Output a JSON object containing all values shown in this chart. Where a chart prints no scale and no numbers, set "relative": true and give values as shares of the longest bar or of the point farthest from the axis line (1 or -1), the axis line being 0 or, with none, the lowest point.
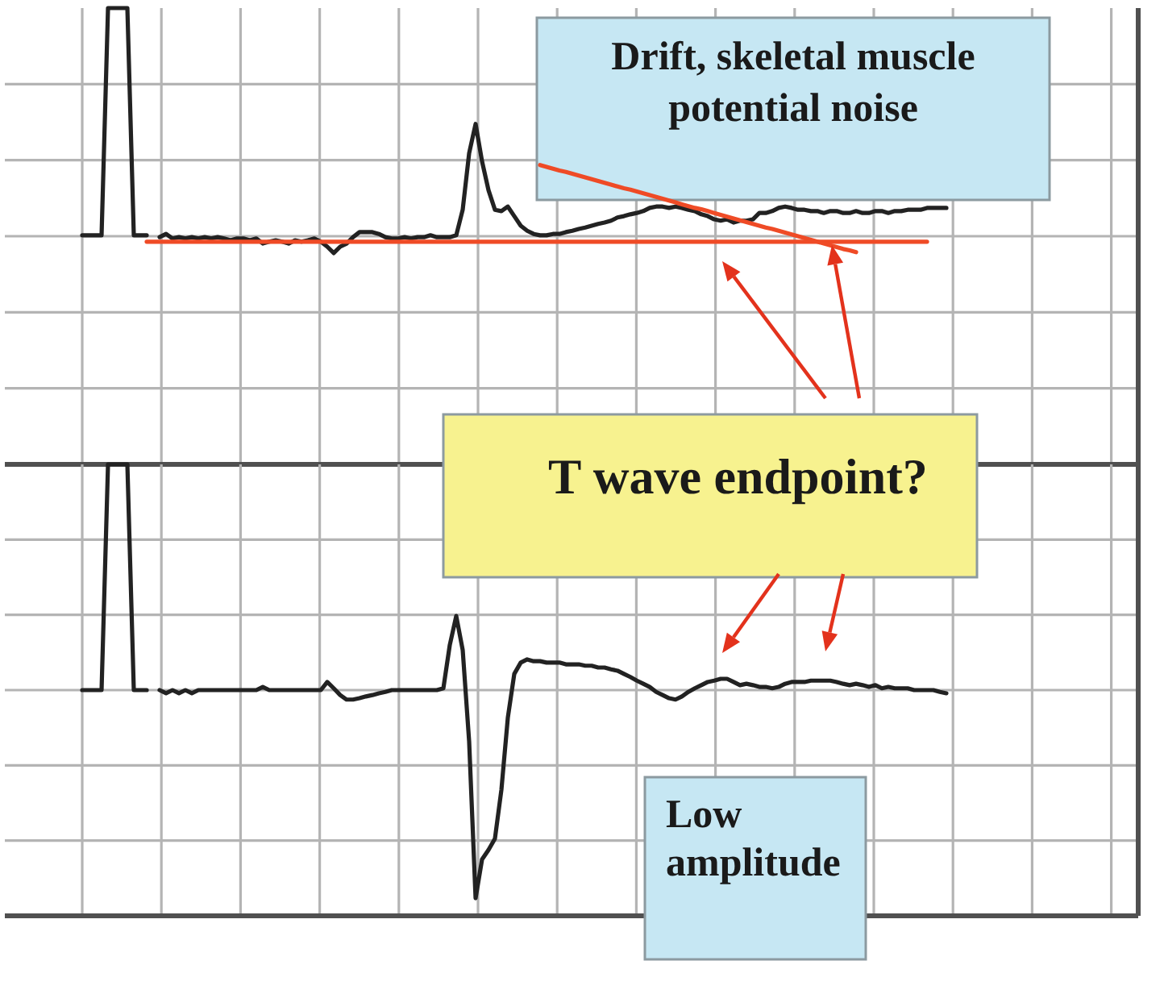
{
  "chart_data": [
    {
      "type": "line",
      "relative": true,
      "grid": true,
      "categories": [
        null,
        null,
        null,
        null,
        null,
        null,
        null,
        null,
        null,
        null,
        null,
        null,
        null,
        null,
        null,
        null,
        null,
        null,
        null,
        null,
        null,
        null,
        null,
        null,
        null,
        null,
        null,
        null,
        null,
        null,
        null,
        null,
        null,
        null,
        null,
        null,
        null,
        null,
        null,
        null,
        null,
        null,
        null,
        null,
        null,
        null,
        null,
        null,
        null,
        null,
        null,
        null,
        null,
        null,
        null,
        null,
        null,
        null,
        null,
        null,
        null,
        null,
        null,
        null,
        null,
        null,
        null,
        null,
        null,
        null,
        null,
        null,
        null,
        null,
        null,
        null,
        null,
        null,
        null,
        null,
        null,
        null,
        null,
        null,
        null,
        null,
        null,
        null,
        null,
        null,
        null,
        null,
        null,
        null,
        null,
        null,
        null,
        null,
        null,
        null,
        null,
        null,
        null,
        null,
        null,
        null,
        null,
        null,
        null,
        null,
        null,
        null,
        null,
        null,
        null,
        null,
        null,
        null,
        null,
        null,
        null,
        null,
        null,
        null,
        null,
        null,
        null,
        null,
        null,
        null,
        null,
        null,
        null,
        null,
        null
      ],
      "series": [
        {
          "color": "#222222",
          "values": [
            0.502,
            0.502,
            0.502,
            0.502,
            1,
            1,
            1,
            1,
            0.502,
            0.502,
            0.502,
            null,
            0.498,
            0.505,
            0.495,
            0.498,
            0.495,
            0.498,
            0.495,
            0.498,
            0.495,
            0.498,
            0.495,
            0.491,
            0.495,
            0.495,
            0.491,
            0.495,
            0.484,
            0.488,
            0.491,
            0.488,
            0.484,
            0.491,
            0.488,
            0.491,
            0.495,
            0.488,
            0.477,
            0.463,
            0.477,
            0.484,
            0.498,
            0.509,
            0.509,
            0.509,
            0.505,
            0.498,
            0.495,
            0.495,
            0.498,
            0.495,
            0.498,
            0.498,
            0.502,
            0.498,
            0.498,
            0.498,
            0.502,
            0.558,
            0.682,
            0.746,
            0.664,
            0.601,
            0.558,
            0.555,
            0.565,
            0.544,
            0.523,
            0.512,
            0.505,
            0.502,
            0.502,
            0.505,
            0.505,
            0.509,
            0.512,
            0.516,
            0.519,
            0.523,
            0.527,
            0.53,
            0.534,
            0.541,
            0.544,
            0.548,
            0.551,
            0.555,
            0.562,
            0.565,
            0.565,
            0.562,
            0.565,
            0.562,
            0.558,
            0.555,
            0.548,
            0.544,
            0.537,
            0.534,
            0.537,
            0.53,
            0.534,
            0.534,
            0.537,
            0.551,
            0.551,
            0.555,
            0.562,
            0.565,
            0.562,
            0.558,
            0.558,
            0.555,
            0.555,
            0.551,
            0.555,
            0.555,
            0.551,
            0.551,
            0.555,
            0.551,
            0.551,
            0.555,
            0.555,
            0.551,
            0.555,
            0.555,
            0.558,
            0.558,
            0.558,
            0.562,
            0.562,
            0.562,
            0.562
          ]
        },
        {
          "color": "#ef4b26",
          "values": [
            null,
            null,
            null,
            null,
            null,
            null,
            null,
            null,
            null,
            null,
            0.488,
            0.488,
            0.488,
            0.488,
            0.488,
            0.488,
            0.488,
            0.488,
            0.488,
            0.488,
            0.488,
            0.488,
            0.488,
            0.488,
            0.488,
            0.488,
            0.488,
            0.488,
            0.488,
            0.488,
            0.488,
            0.488,
            0.488,
            0.488,
            0.488,
            0.488,
            0.488,
            0.488,
            0.488,
            0.488,
            0.488,
            0.488,
            0.488,
            0.488,
            0.488,
            0.488,
            0.488,
            0.488,
            0.488,
            0.488,
            0.488,
            0.488,
            0.488,
            0.488,
            0.488,
            0.488,
            0.488,
            0.488,
            0.488,
            0.488,
            0.488,
            0.488,
            0.488,
            0.488,
            0.488,
            0.488,
            0.488,
            0.488,
            0.488,
            0.488,
            0.488,
            0.488,
            0.488,
            0.488,
            0.488,
            0.488,
            0.488,
            0.488,
            0.488,
            0.488,
            0.488,
            0.488,
            0.488,
            0.488,
            0.488,
            0.488,
            0.488,
            0.488,
            0.488,
            0.488,
            0.488,
            0.488,
            0.488,
            0.488,
            0.488,
            0.488,
            0.488,
            0.488,
            0.488,
            0.488,
            0.488,
            0.488,
            0.488,
            0.488,
            0.488,
            0.488,
            0.488,
            0.488,
            0.488,
            0.488,
            0.488,
            0.488,
            0.488,
            0.488,
            0.488,
            0.488,
            0.488,
            0.488,
            0.488,
            0.488,
            0.488,
            0.488,
            0.488,
            0.488,
            0.488,
            0.488,
            0.488,
            0.488,
            0.488,
            0.488,
            0.488,
            0.488,
            null,
            null,
            null
          ]
        },
        {
          "color": "#ef4b26",
          "values": [
            null,
            null,
            null,
            null,
            null,
            null,
            null,
            null,
            null,
            null,
            null,
            null,
            null,
            null,
            null,
            null,
            null,
            null,
            null,
            null,
            null,
            null,
            null,
            null,
            null,
            null,
            null,
            null,
            null,
            null,
            null,
            null,
            null,
            null,
            null,
            null,
            null,
            null,
            null,
            null,
            null,
            null,
            null,
            null,
            null,
            null,
            null,
            null,
            null,
            null,
            null,
            null,
            null,
            null,
            null,
            null,
            null,
            null,
            null,
            null,
            null,
            null,
            null,
            null,
            null,
            null,
            null,
            null,
            null,
            null,
            null,
            0.656,
            0.652,
            0.648,
            0.644,
            0.641,
            0.637,
            0.633,
            0.629,
            0.625,
            0.621,
            0.617,
            0.613,
            0.609,
            0.605,
            0.602,
            0.598,
            0.594,
            0.59,
            0.586,
            0.582,
            0.578,
            0.574,
            0.57,
            0.566,
            0.562,
            0.559,
            0.555,
            0.551,
            0.547,
            0.543,
            0.539,
            0.535,
            0.531,
            0.527,
            0.523,
            0.519,
            0.516,
            0.512,
            0.508,
            0.504,
            0.5,
            0.496,
            0.492,
            0.488,
            0.484,
            0.48,
            0.476,
            0.472,
            0.469,
            0.465,
            null,
            null,
            null,
            null,
            null,
            null,
            null,
            null,
            null,
            null,
            null,
            null,
            null,
            null
          ]
        }
      ],
      "annotations": [
        "Drift, skeletal muscle potential noise"
      ]
    },
    {
      "type": "line",
      "relative": true,
      "grid": true,
      "categories": [
        null,
        null,
        null,
        null,
        null,
        null,
        null,
        null,
        null,
        null,
        null,
        null,
        null,
        null,
        null,
        null,
        null,
        null,
        null,
        null,
        null,
        null,
        null,
        null,
        null,
        null,
        null,
        null,
        null,
        null,
        null,
        null,
        null,
        null,
        null,
        null,
        null,
        null,
        null,
        null,
        null,
        null,
        null,
        null,
        null,
        null,
        null,
        null,
        null,
        null,
        null,
        null,
        null,
        null,
        null,
        null,
        null,
        null,
        null,
        null,
        null,
        null,
        null,
        null,
        null,
        null,
        null,
        null,
        null,
        null,
        null,
        null,
        null,
        null,
        null,
        null,
        null,
        null,
        null,
        null,
        null,
        null,
        null,
        null,
        null,
        null,
        null,
        null,
        null,
        null,
        null,
        null,
        null,
        null,
        null,
        null,
        null,
        null,
        null,
        null,
        null,
        null,
        null,
        null,
        null,
        null,
        null,
        null,
        null,
        null,
        null,
        null,
        null,
        null,
        null,
        null,
        null,
        null,
        null,
        null,
        null,
        null,
        null,
        null,
        null,
        null,
        null,
        null,
        null,
        null,
        null,
        null,
        null,
        null,
        null
      ],
      "series": [
        {
          "color": "#222222",
          "values": [
            0.5,
            0.5,
            0.5,
            0.5,
            1,
            1,
            1,
            1,
            0.5,
            0.5,
            0.5,
            null,
            0.5,
            0.493,
            0.5,
            0.493,
            0.5,
            0.493,
            0.5,
            0.5,
            0.5,
            0.5,
            0.5,
            0.5,
            0.5,
            0.5,
            0.5,
            0.5,
            0.507,
            0.5,
            0.5,
            0.5,
            0.5,
            0.5,
            0.5,
            0.5,
            0.5,
            0.5,
            0.518,
            0.504,
            0.489,
            0.479,
            0.479,
            0.482,
            0.486,
            0.489,
            0.493,
            0.496,
            0.5,
            0.5,
            0.5,
            0.5,
            0.5,
            0.5,
            0.5,
            0.5,
            0.504,
            0.6,
            0.664,
            0.589,
            0.386,
            0.039,
            0.125,
            0.146,
            0.171,
            0.279,
            0.439,
            0.536,
            0.561,
            0.568,
            0.564,
            0.564,
            0.561,
            0.561,
            0.561,
            0.557,
            0.557,
            0.557,
            0.554,
            0.554,
            0.55,
            0.55,
            0.546,
            0.543,
            0.536,
            0.529,
            0.521,
            0.514,
            0.507,
            0.496,
            0.489,
            0.482,
            0.479,
            0.486,
            0.496,
            0.504,
            0.511,
            0.518,
            0.521,
            0.525,
            0.525,
            0.518,
            0.511,
            0.514,
            0.511,
            0.507,
            0.507,
            0.504,
            0.507,
            0.514,
            0.518,
            0.518,
            0.518,
            0.521,
            0.521,
            0.521,
            0.521,
            0.518,
            0.514,
            0.511,
            0.514,
            0.511,
            0.507,
            0.511,
            0.504,
            0.507,
            0.504,
            0.504,
            0.504,
            0.5,
            0.5,
            0.5,
            0.5,
            0.496,
            0.493
          ]
        }
      ],
      "annotations": [
        "T wave endpoint?",
        "Low amplitude"
      ]
    }
  ]
}
